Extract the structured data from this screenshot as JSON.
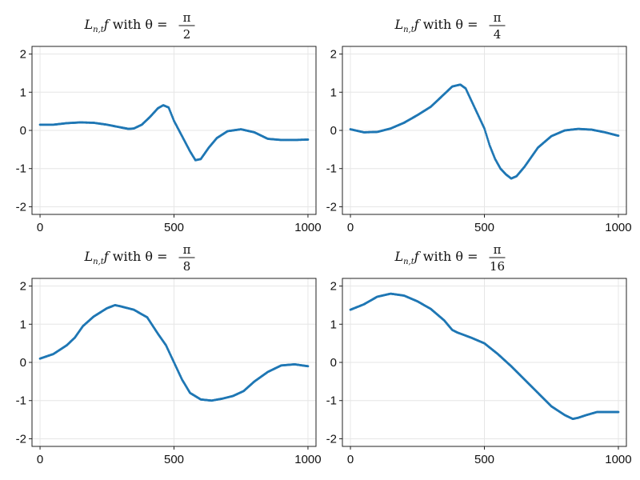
{
  "colors": {
    "series": "#1f77b4",
    "grid": "#e6e6e6",
    "frame": "#222222"
  },
  "chart_data": [
    {
      "type": "scatter",
      "title": {
        "prefix": "L",
        "sub": "n,t",
        "suffix": "f with θ =",
        "num": "π",
        "den": "2"
      },
      "xlim": [
        -30,
        1030
      ],
      "ylim": [
        -2.2,
        2.2
      ],
      "xticks": [
        0,
        500,
        1000
      ],
      "yticks": [
        -2,
        -1,
        0,
        1,
        2
      ],
      "x_tick_labels": [
        "0",
        "500",
        "1000"
      ],
      "y_tick_labels": [
        "-2",
        "-1",
        "0",
        "1",
        "2"
      ],
      "grid": true,
      "series": [
        {
          "x": [
            0,
            50,
            100,
            150,
            200,
            250,
            300,
            330,
            350,
            380,
            410,
            440,
            460,
            480,
            500,
            530,
            560,
            580,
            600,
            630,
            660,
            700,
            750,
            800,
            850,
            900,
            950,
            1000
          ],
          "y": [
            0.15,
            0.15,
            0.19,
            0.21,
            0.2,
            0.15,
            0.08,
            0.04,
            0.05,
            0.15,
            0.35,
            0.58,
            0.66,
            0.6,
            0.25,
            -0.15,
            -0.55,
            -0.78,
            -0.75,
            -0.45,
            -0.2,
            -0.02,
            0.03,
            -0.05,
            -0.22,
            -0.25,
            -0.25,
            -0.24
          ]
        }
      ]
    },
    {
      "type": "scatter",
      "title": {
        "prefix": "L",
        "sub": "n,t",
        "suffix": "f with θ =",
        "num": "π",
        "den": "4"
      },
      "xlim": [
        -30,
        1030
      ],
      "ylim": [
        -2.2,
        2.2
      ],
      "xticks": [
        0,
        500,
        1000
      ],
      "yticks": [
        -2,
        -1,
        0,
        1,
        2
      ],
      "x_tick_labels": [
        "0",
        "500",
        "1000"
      ],
      "y_tick_labels": [
        "-2",
        "-1",
        "0",
        "1",
        "2"
      ],
      "grid": true,
      "series": [
        {
          "x": [
            0,
            50,
            100,
            150,
            200,
            250,
            300,
            350,
            380,
            410,
            430,
            450,
            470,
            500,
            520,
            540,
            560,
            580,
            600,
            620,
            650,
            700,
            750,
            800,
            850,
            900,
            950,
            1000
          ],
          "y": [
            0.03,
            -0.05,
            -0.04,
            0.05,
            0.2,
            0.4,
            0.62,
            0.95,
            1.15,
            1.2,
            1.1,
            0.8,
            0.5,
            0.05,
            -0.4,
            -0.75,
            -1.0,
            -1.15,
            -1.26,
            -1.2,
            -0.95,
            -0.45,
            -0.15,
            0.0,
            0.04,
            0.02,
            -0.05,
            -0.14
          ]
        }
      ]
    },
    {
      "type": "scatter",
      "title": {
        "prefix": "L",
        "sub": "n,t",
        "suffix": "f with θ =",
        "num": "π",
        "den": "8"
      },
      "xlim": [
        -30,
        1030
      ],
      "ylim": [
        -2.2,
        2.2
      ],
      "xticks": [
        0,
        500,
        1000
      ],
      "yticks": [
        -2,
        -1,
        0,
        1,
        2
      ],
      "x_tick_labels": [
        "0",
        "500",
        "1000"
      ],
      "y_tick_labels": [
        "-2",
        "-1",
        "0",
        "1",
        "2"
      ],
      "grid": true,
      "series": [
        {
          "x": [
            0,
            50,
            100,
            130,
            160,
            200,
            250,
            280,
            300,
            350,
            400,
            440,
            470,
            500,
            530,
            560,
            600,
            640,
            680,
            720,
            760,
            800,
            850,
            900,
            950,
            1000
          ],
          "y": [
            0.1,
            0.22,
            0.45,
            0.65,
            0.95,
            1.2,
            1.42,
            1.5,
            1.47,
            1.38,
            1.18,
            0.75,
            0.45,
            0.0,
            -0.45,
            -0.8,
            -0.97,
            -1.0,
            -0.95,
            -0.88,
            -0.75,
            -0.5,
            -0.25,
            -0.08,
            -0.05,
            -0.1
          ]
        }
      ]
    },
    {
      "type": "scatter",
      "title": {
        "prefix": "L",
        "sub": "n,t",
        "suffix": "f with θ =",
        "num": "π",
        "den": "16"
      },
      "xlim": [
        -30,
        1030
      ],
      "ylim": [
        -2.2,
        2.2
      ],
      "xticks": [
        0,
        500,
        1000
      ],
      "yticks": [
        -2,
        -1,
        0,
        1,
        2
      ],
      "x_tick_labels": [
        "0",
        "500",
        "1000"
      ],
      "y_tick_labels": [
        "-2",
        "-1",
        "0",
        "1",
        "2"
      ],
      "grid": true,
      "series": [
        {
          "x": [
            0,
            50,
            100,
            150,
            200,
            250,
            300,
            350,
            380,
            400,
            450,
            500,
            550,
            600,
            650,
            700,
            750,
            800,
            830,
            850,
            880,
            920,
            960,
            1000
          ],
          "y": [
            1.38,
            1.52,
            1.72,
            1.8,
            1.75,
            1.6,
            1.4,
            1.1,
            0.85,
            0.78,
            0.65,
            0.5,
            0.22,
            -0.1,
            -0.45,
            -0.8,
            -1.15,
            -1.38,
            -1.48,
            -1.45,
            -1.38,
            -1.3,
            -1.3,
            -1.3
          ]
        }
      ]
    }
  ]
}
